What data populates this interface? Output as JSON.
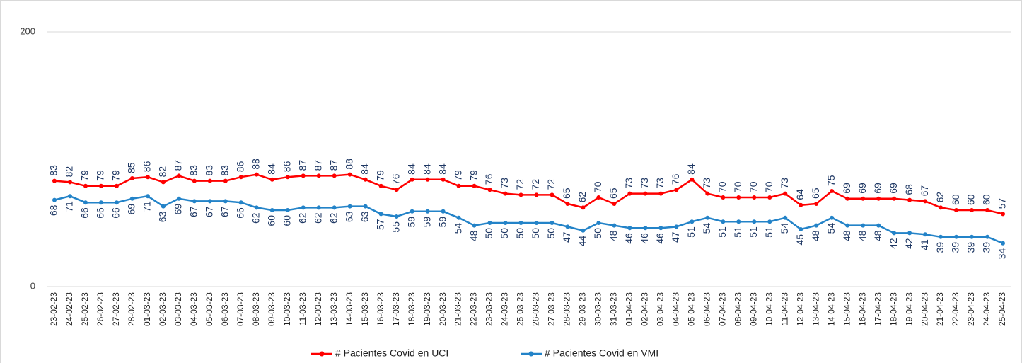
{
  "chart_data": {
    "type": "line",
    "x": [
      "23-02-23",
      "24-02-23",
      "25-02-23",
      "26-02-23",
      "27-02-23",
      "28-02-23",
      "01-03-23",
      "02-03-23",
      "03-03-23",
      "04-03-23",
      "05-03-23",
      "06-03-23",
      "07-03-23",
      "08-03-23",
      "09-03-23",
      "10-03-23",
      "11-03-23",
      "12-03-23",
      "13-03-23",
      "14-03-23",
      "15-03-23",
      "16-03-23",
      "17-03-23",
      "18-03-23",
      "19-03-23",
      "20-03-23",
      "21-03-23",
      "22-03-23",
      "23-03-23",
      "24-03-23",
      "25-03-23",
      "26-03-23",
      "27-03-23",
      "28-03-23",
      "29-03-23",
      "30-03-23",
      "31-03-23",
      "01-04-23",
      "02-04-23",
      "03-04-23",
      "04-04-23",
      "05-04-23",
      "06-04-23",
      "07-04-23",
      "08-04-23",
      "09-04-23",
      "10-04-23",
      "11-04-23",
      "12-04-23",
      "13-04-23",
      "14-04-23",
      "15-04-23",
      "16-04-23",
      "17-04-23",
      "18-04-23",
      "19-04-23",
      "20-04-23",
      "21-04-23",
      "22-04-23",
      "23-04-23",
      "24-04-23",
      "25-04-23"
    ],
    "series": [
      {
        "name": "# Pacientes Covid en UCI",
        "color": "#ff0000",
        "values": [
          83,
          82,
          79,
          79,
          79,
          85,
          86,
          82,
          87,
          83,
          83,
          83,
          86,
          88,
          84,
          86,
          87,
          87,
          87,
          88,
          84,
          79,
          76,
          84,
          84,
          84,
          79,
          79,
          76,
          73,
          72,
          72,
          72,
          65,
          62,
          70,
          65,
          73,
          73,
          73,
          76,
          84,
          73,
          70,
          70,
          70,
          70,
          73,
          64,
          65,
          75,
          69,
          69,
          69,
          69,
          68,
          67,
          62,
          60,
          60,
          60,
          57
        ]
      },
      {
        "name": "# Pacientes Covid en VMI",
        "color": "#2383c8",
        "values": [
          68,
          71,
          66,
          66,
          66,
          69,
          71,
          63,
          69,
          67,
          67,
          67,
          66,
          62,
          60,
          60,
          62,
          62,
          62,
          63,
          63,
          57,
          55,
          59,
          59,
          59,
          54,
          48,
          50,
          50,
          50,
          50,
          50,
          47,
          44,
          50,
          48,
          46,
          46,
          46,
          47,
          51,
          54,
          51,
          51,
          51,
          51,
          54,
          45,
          48,
          54,
          48,
          48,
          48,
          42,
          42,
          41,
          39,
          39,
          39,
          39,
          34
        ]
      }
    ],
    "ylim": [
      0,
      200
    ],
    "yticks": [
      0,
      200
    ],
    "grid": true,
    "legend": "bottom"
  }
}
